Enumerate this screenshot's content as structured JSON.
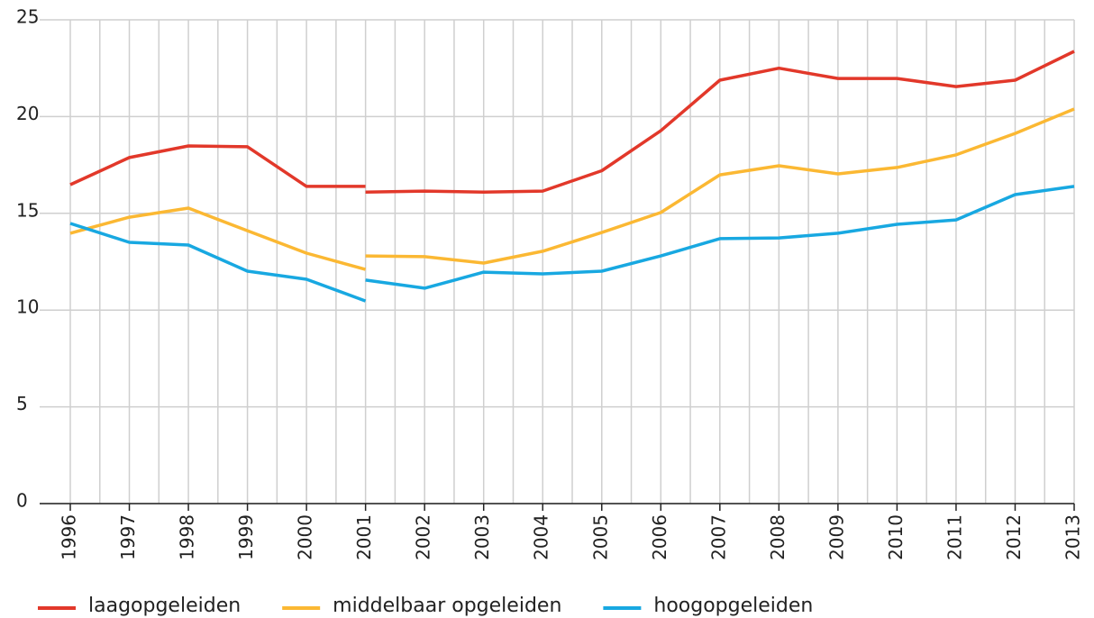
{
  "chart_data": {
    "type": "line",
    "x": [
      1996,
      1997,
      1998,
      1999,
      2000,
      2001,
      null,
      2001,
      2002,
      2003,
      2004,
      2005,
      2006,
      2007,
      2008,
      2009,
      2010,
      2011,
      2012,
      2013
    ],
    "series": [
      {
        "name": "laagopgeleiden",
        "color": "#e2382a",
        "values": [
          16.48,
          17.88,
          18.48,
          18.44,
          16.39,
          16.39,
          null,
          16.1,
          16.15,
          16.1,
          16.15,
          17.2,
          19.27,
          21.88,
          22.5,
          21.97,
          21.97,
          21.55,
          21.88,
          23.37
        ]
      },
      {
        "name": "middelbaar opgeleiden",
        "color": "#fbb833",
        "values": [
          13.97,
          14.8,
          15.27,
          14.1,
          12.94,
          12.1,
          null,
          12.8,
          12.76,
          12.43,
          13.04,
          14.01,
          15.04,
          16.99,
          17.46,
          17.04,
          17.37,
          18.02,
          19.13,
          20.39
        ]
      },
      {
        "name": "hoogopgeleiden",
        "color": "#18a8e1",
        "values": [
          14.48,
          13.5,
          13.36,
          12.01,
          11.59,
          10.47,
          null,
          11.55,
          11.13,
          11.96,
          11.87,
          12.01,
          12.8,
          13.69,
          13.73,
          13.97,
          14.43,
          14.66,
          15.97,
          16.39
        ]
      }
    ],
    "xlim": [
      1996,
      2013
    ],
    "xticks": [
      1996,
      1997,
      1998,
      1999,
      2000,
      2001,
      2002,
      2003,
      2004,
      2005,
      2006,
      2007,
      2008,
      2009,
      2010,
      2011,
      2012,
      2013
    ],
    "ylim": [
      0,
      25
    ],
    "yticks": [
      0,
      5,
      10,
      15,
      20,
      25
    ],
    "grid": true,
    "legend": "bottom"
  }
}
